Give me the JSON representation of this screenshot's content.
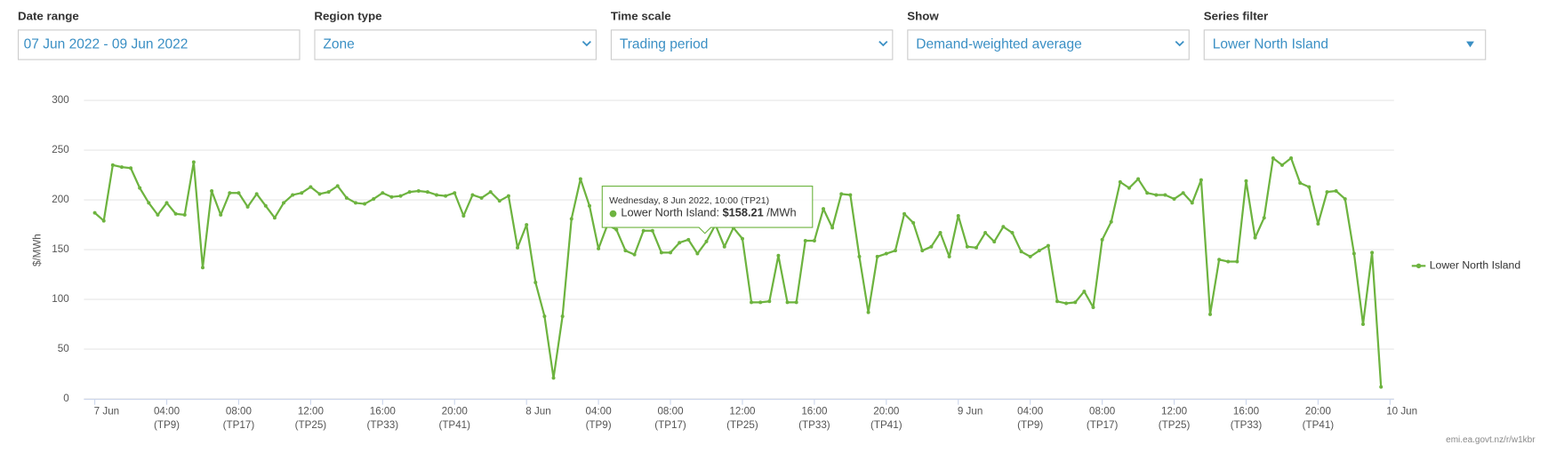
{
  "controls": [
    {
      "label": "Date range",
      "value": "07 Jun 2022 - 09 Jun 2022"
    },
    {
      "label": "Region type",
      "value": "Zone"
    },
    {
      "label": "Time scale",
      "value": "Trading period"
    },
    {
      "label": "Show",
      "value": "Demand-weighted average"
    },
    {
      "label": "Series filter",
      "value": "Lower North Island"
    }
  ],
  "chart_data": {
    "type": "line",
    "y_label": "$/MWh",
    "x": [
      "2022-06-07T00:00",
      "2022-06-07T00:30",
      "2022-06-07T01:00",
      "2022-06-07T01:30",
      "2022-06-07T02:00",
      "2022-06-07T02:30",
      "2022-06-07T03:00",
      "2022-06-07T03:30",
      "2022-06-07T04:00",
      "2022-06-07T04:30",
      "2022-06-07T05:00",
      "2022-06-07T05:30",
      "2022-06-07T06:00",
      "2022-06-07T06:30",
      "2022-06-07T07:00",
      "2022-06-07T07:30",
      "2022-06-07T08:00",
      "2022-06-07T08:30",
      "2022-06-07T09:00",
      "2022-06-07T09:30",
      "2022-06-07T10:00",
      "2022-06-07T10:30",
      "2022-06-07T11:00",
      "2022-06-07T11:30",
      "2022-06-07T12:00",
      "2022-06-07T12:30",
      "2022-06-07T13:00",
      "2022-06-07T13:30",
      "2022-06-07T14:00",
      "2022-06-07T14:30",
      "2022-06-07T15:00",
      "2022-06-07T15:30",
      "2022-06-07T16:00",
      "2022-06-07T16:30",
      "2022-06-07T17:00",
      "2022-06-07T17:30",
      "2022-06-07T18:00",
      "2022-06-07T18:30",
      "2022-06-07T19:00",
      "2022-06-07T19:30",
      "2022-06-07T20:00",
      "2022-06-07T20:30",
      "2022-06-07T21:00",
      "2022-06-07T21:30",
      "2022-06-07T22:00",
      "2022-06-07T22:30",
      "2022-06-07T23:00",
      "2022-06-07T23:30",
      "2022-06-08T00:00",
      "2022-06-08T00:30",
      "2022-06-08T01:00",
      "2022-06-08T01:30",
      "2022-06-08T02:00",
      "2022-06-08T02:30",
      "2022-06-08T03:00",
      "2022-06-08T03:30",
      "2022-06-08T04:00",
      "2022-06-08T04:30",
      "2022-06-08T05:00",
      "2022-06-08T05:30",
      "2022-06-08T06:00",
      "2022-06-08T06:30",
      "2022-06-08T07:00",
      "2022-06-08T07:30",
      "2022-06-08T08:00",
      "2022-06-08T08:30",
      "2022-06-08T09:00",
      "2022-06-08T09:30",
      "2022-06-08T10:00",
      "2022-06-08T10:30",
      "2022-06-08T11:00",
      "2022-06-08T11:30",
      "2022-06-08T12:00",
      "2022-06-08T12:30",
      "2022-06-08T13:00",
      "2022-06-08T13:30",
      "2022-06-08T14:00",
      "2022-06-08T14:30",
      "2022-06-08T15:00",
      "2022-06-08T15:30",
      "2022-06-08T16:00",
      "2022-06-08T16:30",
      "2022-06-08T17:00",
      "2022-06-08T17:30",
      "2022-06-08T18:00",
      "2022-06-08T18:30",
      "2022-06-08T19:00",
      "2022-06-08T19:30",
      "2022-06-08T20:00",
      "2022-06-08T20:30",
      "2022-06-08T21:00",
      "2022-06-08T21:30",
      "2022-06-08T22:00",
      "2022-06-08T22:30",
      "2022-06-08T23:00",
      "2022-06-08T23:30",
      "2022-06-09T00:00",
      "2022-06-09T00:30",
      "2022-06-09T01:00",
      "2022-06-09T01:30",
      "2022-06-09T02:00",
      "2022-06-09T02:30",
      "2022-06-09T03:00",
      "2022-06-09T03:30",
      "2022-06-09T04:00",
      "2022-06-09T04:30",
      "2022-06-09T05:00",
      "2022-06-09T05:30",
      "2022-06-09T06:00",
      "2022-06-09T06:30",
      "2022-06-09T07:00",
      "2022-06-09T07:30",
      "2022-06-09T08:00",
      "2022-06-09T08:30",
      "2022-06-09T09:00",
      "2022-06-09T09:30",
      "2022-06-09T10:00",
      "2022-06-09T10:30",
      "2022-06-09T11:00",
      "2022-06-09T11:30",
      "2022-06-09T12:00",
      "2022-06-09T12:30",
      "2022-06-09T13:00",
      "2022-06-09T13:30",
      "2022-06-09T14:00",
      "2022-06-09T14:30",
      "2022-06-09T15:00",
      "2022-06-09T15:30",
      "2022-06-09T16:00",
      "2022-06-09T16:30",
      "2022-06-09T17:00",
      "2022-06-09T17:30",
      "2022-06-09T18:00",
      "2022-06-09T18:30",
      "2022-06-09T19:00",
      "2022-06-09T19:30",
      "2022-06-09T20:00",
      "2022-06-09T20:30",
      "2022-06-09T21:00",
      "2022-06-09T21:30",
      "2022-06-09T22:00",
      "2022-06-09T22:30",
      "2022-06-09T23:00",
      "2022-06-09T23:30"
    ],
    "series": [
      {
        "name": "Lower North Island",
        "color": "#6db33f",
        "values": [
          187,
          179,
          235,
          233,
          232,
          212,
          197,
          185,
          197,
          186,
          185,
          238,
          132,
          209,
          185,
          207,
          207,
          193,
          206,
          194,
          182,
          197,
          205,
          207,
          213,
          206,
          208,
          214,
          202,
          197,
          196,
          201,
          207,
          203,
          204,
          208,
          209,
          208,
          205,
          204,
          207,
          184,
          205,
          202,
          208,
          199,
          204,
          152,
          175,
          117,
          83,
          21,
          83,
          181,
          221,
          194,
          151,
          175,
          170,
          149,
          145,
          169,
          169,
          147,
          147,
          157,
          160,
          146,
          158.21,
          175,
          153,
          172,
          161,
          97,
          97,
          98,
          144,
          97,
          97,
          159,
          159,
          191,
          172,
          206,
          205,
          143,
          87,
          143,
          146,
          149,
          186,
          177,
          149,
          153,
          167,
          143,
          184,
          153,
          152,
          167,
          158,
          173,
          167,
          148,
          143,
          149,
          154,
          98,
          96,
          97,
          108,
          92,
          160,
          178,
          218,
          212,
          221,
          207,
          205,
          205,
          201,
          207,
          197,
          220,
          85,
          140,
          138,
          138,
          219,
          162,
          182,
          242,
          235,
          242,
          217,
          213,
          176,
          208,
          209,
          201,
          146,
          75,
          147,
          12
        ]
      }
    ],
    "xlim": [
      "2022-06-07T00:00",
      "2022-06-10T00:00"
    ],
    "xticks": [
      {
        "value": "2022-06-07T00:00",
        "label": "7 Jun"
      },
      {
        "value": "2022-06-07T04:00",
        "label": "04:00",
        "period": "(TP9)"
      },
      {
        "value": "2022-06-07T08:00",
        "label": "08:00",
        "period": "(TP17)"
      },
      {
        "value": "2022-06-07T12:00",
        "label": "12:00",
        "period": "(TP25)"
      },
      {
        "value": "2022-06-07T16:00",
        "label": "16:00",
        "period": "(TP33)"
      },
      {
        "value": "2022-06-07T20:00",
        "label": "20:00",
        "period": "(TP41)"
      },
      {
        "value": "2022-06-08T00:00",
        "label": "8 Jun"
      },
      {
        "value": "2022-06-08T04:00",
        "label": "04:00",
        "period": "(TP9)"
      },
      {
        "value": "2022-06-08T08:00",
        "label": "08:00",
        "period": "(TP17)"
      },
      {
        "value": "2022-06-08T12:00",
        "label": "12:00",
        "period": "(TP25)"
      },
      {
        "value": "2022-06-08T16:00",
        "label": "16:00",
        "period": "(TP33)"
      },
      {
        "value": "2022-06-08T20:00",
        "label": "20:00",
        "period": "(TP41)"
      },
      {
        "value": "2022-06-09T00:00",
        "label": "9 Jun"
      },
      {
        "value": "2022-06-09T04:00",
        "label": "04:00",
        "period": "(TP9)"
      },
      {
        "value": "2022-06-09T08:00",
        "label": "08:00",
        "period": "(TP17)"
      },
      {
        "value": "2022-06-09T12:00",
        "label": "12:00",
        "period": "(TP25)"
      },
      {
        "value": "2022-06-09T16:00",
        "label": "16:00",
        "period": "(TP33)"
      },
      {
        "value": "2022-06-09T20:00",
        "label": "20:00",
        "period": "(TP41)"
      },
      {
        "value": "2022-06-10T00:00",
        "label": "10 Jun"
      }
    ],
    "ylim": [
      0,
      300
    ],
    "yticks": [
      0,
      50,
      100,
      150,
      200,
      250,
      300
    ],
    "grid": true,
    "legend": "right",
    "tooltip": {
      "title": "Wednesday, 8 Jun 2022, 10:00 (TP21)",
      "series_label": "Lower North Island:",
      "value_label": "$158.21",
      "unit": "/MWh"
    }
  },
  "footer": "emi.ea.govt.nz/r/w1kbr"
}
